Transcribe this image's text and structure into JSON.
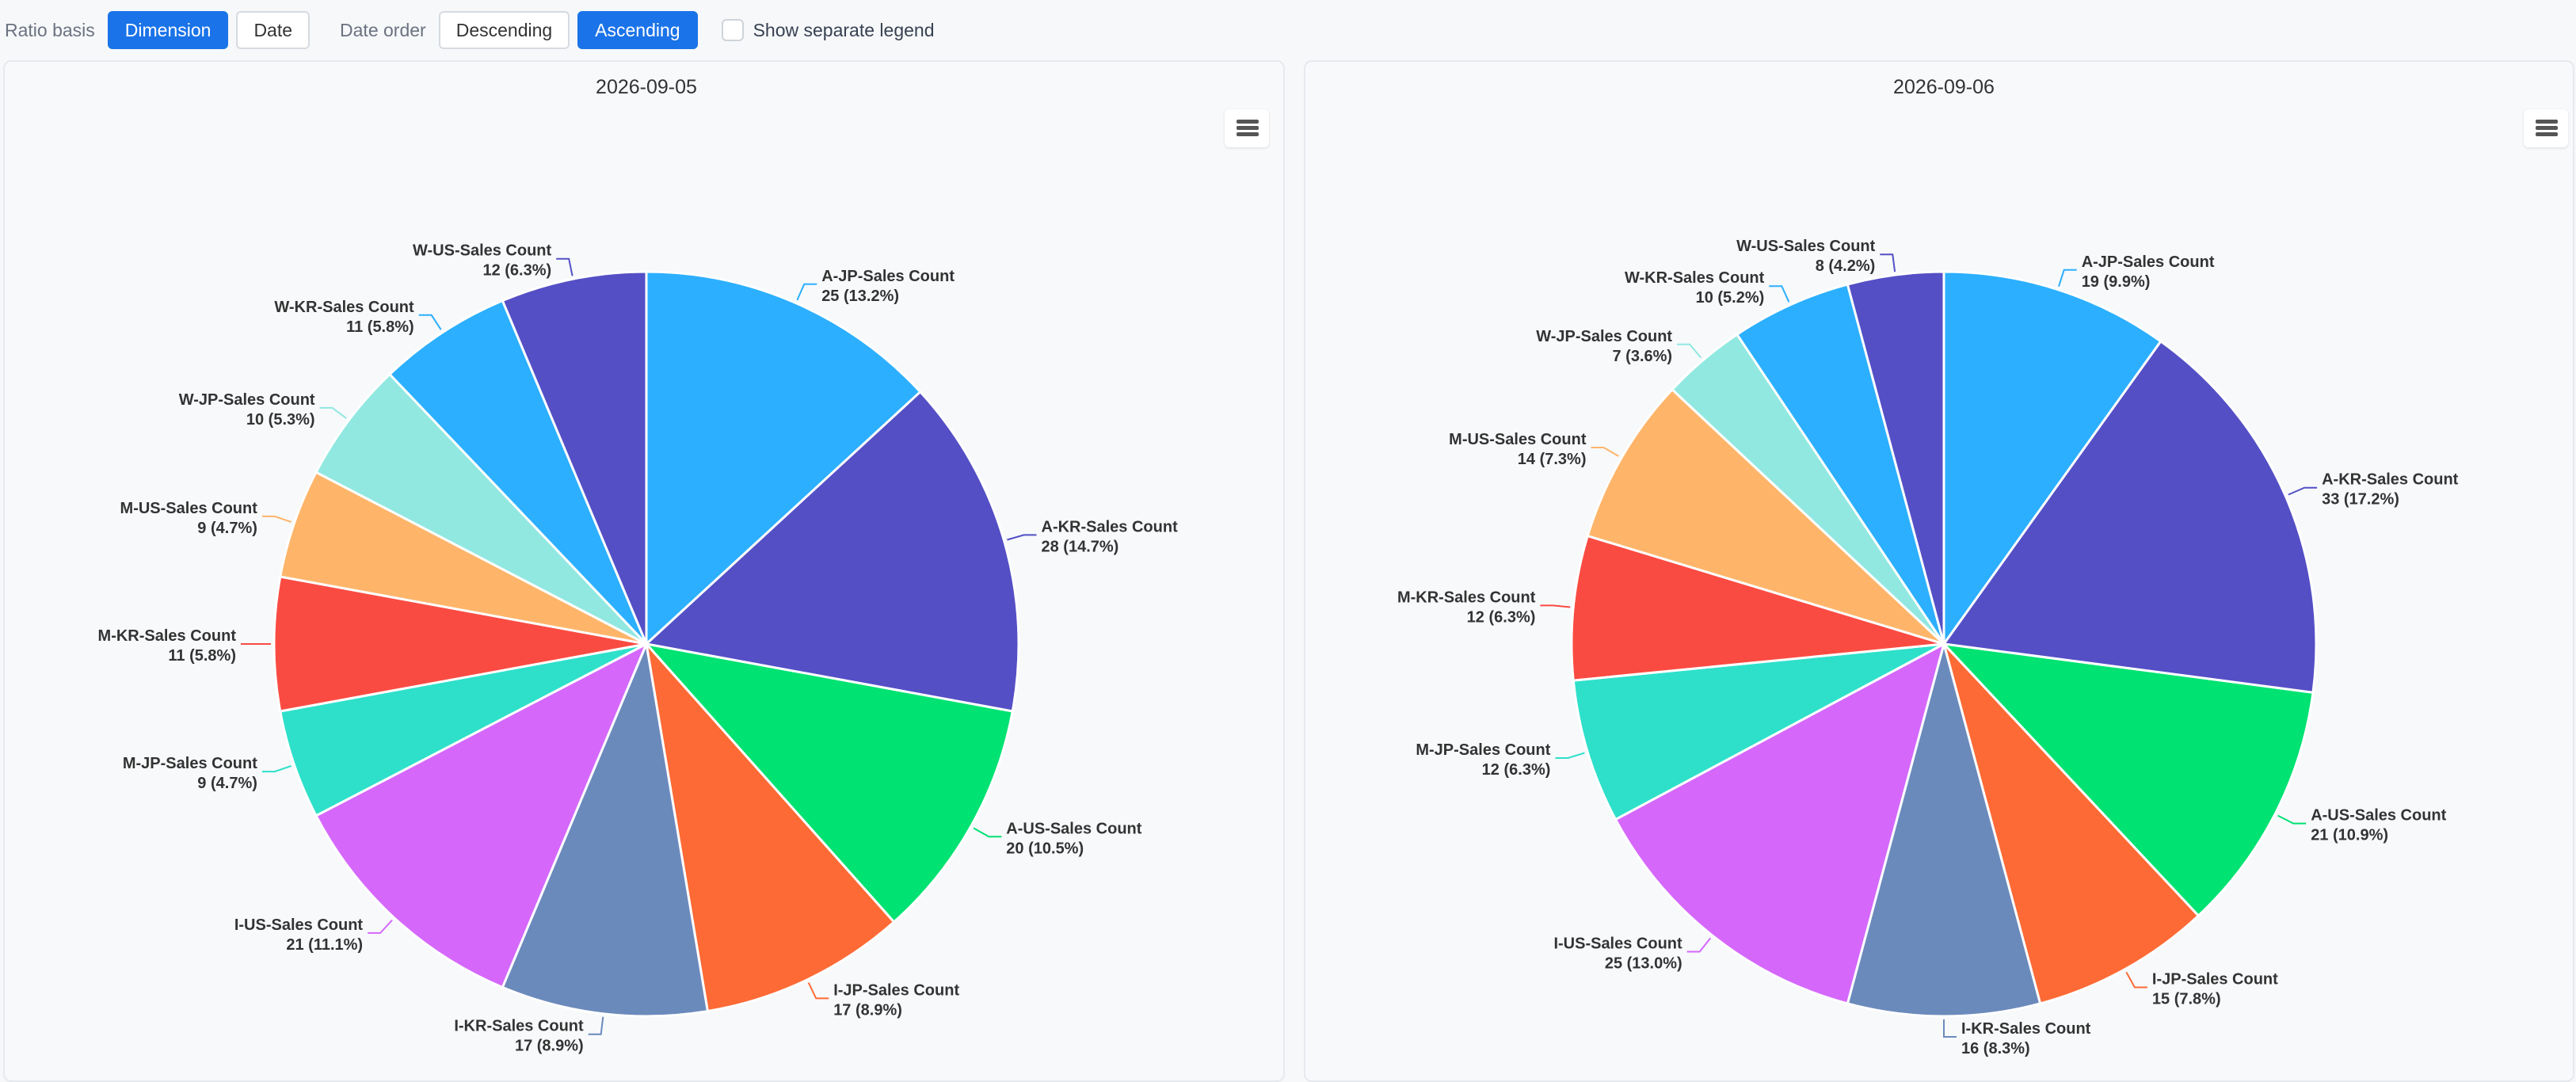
{
  "toolbar": {
    "ratio_label": "Ratio basis",
    "ratio_options": [
      "Dimension",
      "Date"
    ],
    "order_label": "Date order",
    "order_options": [
      "Descending",
      "Ascending"
    ],
    "legend_checkbox_label": "Show separate legend"
  },
  "colors": [
    "#2caffe",
    "#544fc5",
    "#00e272",
    "#fe6a35",
    "#6b8abc",
    "#d568fb",
    "#2ee0ca",
    "#fa4b42",
    "#feb56a",
    "#91e8e1"
  ],
  "chart_data": [
    {
      "type": "pie",
      "title": "2026-09-05",
      "slices": [
        {
          "name": "A-JP-Sales Count",
          "value": 25,
          "label": "25 (13.2%)",
          "color": "#2caffe"
        },
        {
          "name": "A-KR-Sales Count",
          "value": 28,
          "label": "28 (14.7%)",
          "color": "#544fc5"
        },
        {
          "name": "A-US-Sales Count",
          "value": 20,
          "label": "20 (10.5%)",
          "color": "#00e272"
        },
        {
          "name": "I-JP-Sales Count",
          "value": 17,
          "label": "17 (8.9%)",
          "color": "#fe6a35"
        },
        {
          "name": "I-KR-Sales Count",
          "value": 17,
          "label": "17 (8.9%)",
          "color": "#6b8abc"
        },
        {
          "name": "I-US-Sales Count",
          "value": 21,
          "label": "21 (11.1%)",
          "color": "#d568fb"
        },
        {
          "name": "M-JP-Sales Count",
          "value": 9,
          "label": "9 (4.7%)",
          "color": "#2ee0ca"
        },
        {
          "name": "M-KR-Sales Count",
          "value": 11,
          "label": "11 (5.8%)",
          "color": "#fa4b42"
        },
        {
          "name": "M-US-Sales Count",
          "value": 9,
          "label": "9 (4.7%)",
          "color": "#feb56a"
        },
        {
          "name": "W-JP-Sales Count",
          "value": 10,
          "label": "10 (5.3%)",
          "color": "#91e8e1"
        },
        {
          "name": "W-KR-Sales Count",
          "value": 11,
          "label": "11 (5.8%)",
          "color": "#2caffe"
        },
        {
          "name": "W-US-Sales Count",
          "value": 12,
          "label": "12 (6.3%)",
          "color": "#544fc5"
        }
      ]
    },
    {
      "type": "pie",
      "title": "2026-09-06",
      "slices": [
        {
          "name": "A-JP-Sales Count",
          "value": 19,
          "label": "19 (9.9%)",
          "color": "#2caffe"
        },
        {
          "name": "A-KR-Sales Count",
          "value": 33,
          "label": "33 (17.2%)",
          "color": "#544fc5"
        },
        {
          "name": "A-US-Sales Count",
          "value": 21,
          "label": "21 (10.9%)",
          "color": "#00e272"
        },
        {
          "name": "I-JP-Sales Count",
          "value": 15,
          "label": "15 (7.8%)",
          "color": "#fe6a35"
        },
        {
          "name": "I-KR-Sales Count",
          "value": 16,
          "label": "16 (8.3%)",
          "color": "#6b8abc"
        },
        {
          "name": "I-US-Sales Count",
          "value": 25,
          "label": "25 (13.0%)",
          "color": "#d568fb"
        },
        {
          "name": "M-JP-Sales Count",
          "value": 12,
          "label": "12 (6.3%)",
          "color": "#2ee0ca"
        },
        {
          "name": "M-KR-Sales Count",
          "value": 12,
          "label": "12 (6.3%)",
          "color": "#fa4b42"
        },
        {
          "name": "M-US-Sales Count",
          "value": 14,
          "label": "14 (7.3%)",
          "color": "#feb56a"
        },
        {
          "name": "W-JP-Sales Count",
          "value": 7,
          "label": "7 (3.6%)",
          "color": "#91e8e1"
        },
        {
          "name": "W-KR-Sales Count",
          "value": 10,
          "label": "10 (5.2%)",
          "color": "#2caffe"
        },
        {
          "name": "W-US-Sales Count",
          "value": 8,
          "label": "8 (4.2%)",
          "color": "#544fc5"
        }
      ]
    }
  ]
}
